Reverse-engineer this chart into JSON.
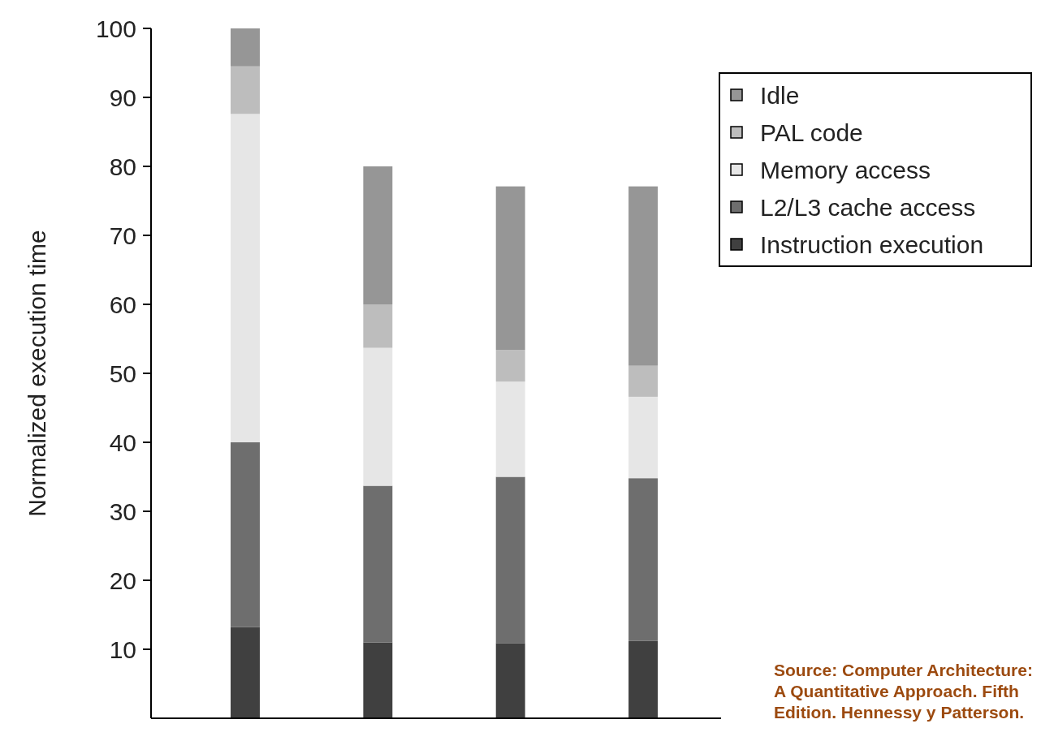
{
  "chart_data": {
    "type": "bar",
    "stacked": true,
    "ylabel": "Normalized execution time",
    "categories": [
      null,
      null,
      null,
      null
    ],
    "series": [
      {
        "name": "Instruction execution",
        "color": "#404040",
        "values": [
          13.2,
          11,
          10.9,
          11.2
        ]
      },
      {
        "name": "L2/L3 cache access",
        "color": "#6e6e6e",
        "values": [
          26.8,
          22.7,
          24.1,
          23.6
        ]
      },
      {
        "name": "Memory access",
        "color": "#e6e6e6",
        "values": [
          47.6,
          20,
          13.8,
          11.8
        ]
      },
      {
        "name": "PAL code",
        "color": "#bdbdbd",
        "values": [
          6.9,
          6.3,
          4.6,
          4.5
        ]
      },
      {
        "name": "Idle",
        "color": "#969696",
        "values": [
          5.5,
          20,
          23.7,
          26
        ]
      }
    ],
    "ylim": [
      0,
      100
    ],
    "yticks": [
      10,
      20,
      30,
      40,
      50,
      60,
      70,
      80,
      90,
      100
    ],
    "legend": "top right",
    "annotations": [
      "Source: Computer Architecture: A Quantitative Approach. Fifth Edition. Hennessy y Patterson."
    ]
  }
}
